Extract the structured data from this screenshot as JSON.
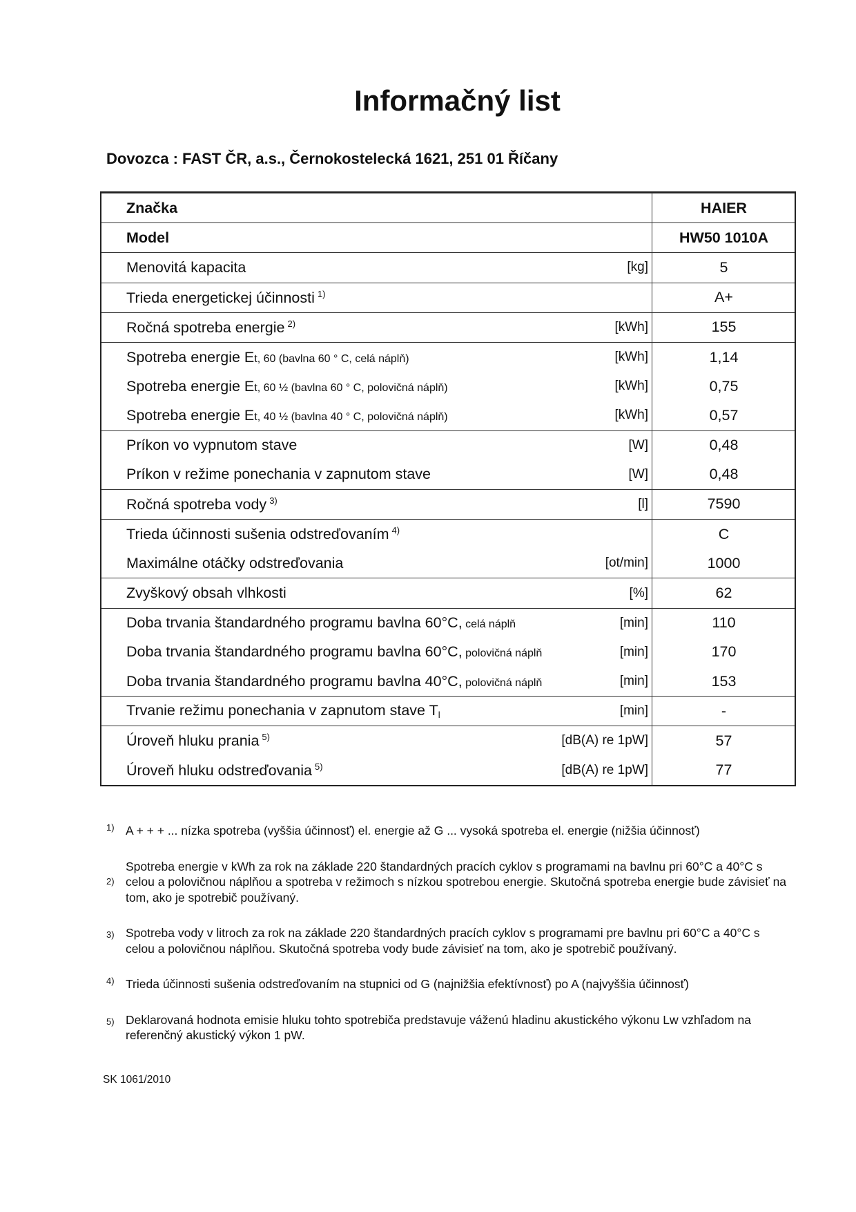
{
  "title": "Informačný list",
  "importer": "Dovozca : FAST ČR, a.s., Černokostelecká 1621, 251 01 Říčany",
  "rows": [
    {
      "label": "Značka",
      "sub": "",
      "sup": "",
      "unit": "",
      "value": "HAIER",
      "bold": true,
      "group_start": true
    },
    {
      "label": "Model",
      "sub": "",
      "sup": "",
      "unit": "",
      "value": "HW50 1010A",
      "bold": true,
      "group_start": true
    },
    {
      "label": "Menovitá kapacita",
      "sub": "",
      "sup": "",
      "unit": "[kg]",
      "value": "5",
      "group_start": true
    },
    {
      "label": "Trieda energetickej účinnosti",
      "sub": "",
      "sup": "1)",
      "unit": "",
      "value": "A+",
      "group_start": true
    },
    {
      "label": "Ročná spotreba energie",
      "sub": "",
      "sup": "2)",
      "unit": "[kWh]",
      "value": "155",
      "group_start": true
    },
    {
      "label": "Spotreba energie E",
      "sub": "t, 60 (bavlna 60 ° C, celá náplň)",
      "sup": "",
      "unit": "[kWh]",
      "value": "1,14",
      "group_start": true
    },
    {
      "label": "Spotreba energie E",
      "sub": "t, 60 ½ (bavlna 60 ° C, polovičná náplň)",
      "sup": "",
      "unit": "[kWh]",
      "value": "0,75",
      "group_start": false
    },
    {
      "label": "Spotreba energie E",
      "sub": "t, 40 ½ (bavlna 40 ° C, polovičná náplň)",
      "sup": "",
      "unit": "[kWh]",
      "value": "0,57",
      "group_start": false
    },
    {
      "label": "Príkon vo vypnutom stave",
      "sub": "",
      "sup": "",
      "unit": "[W]",
      "value": "0,48",
      "group_start": true
    },
    {
      "label": "Príkon v režime ponechania v zapnutom stave",
      "sub": "",
      "sup": "",
      "unit": "[W]",
      "value": "0,48",
      "group_start": false
    },
    {
      "label": "Ročná spotreba vody",
      "sub": "",
      "sup": "3)",
      "unit": "[l]",
      "value": "7590",
      "group_start": true
    },
    {
      "label": "Trieda účinnosti sušenia odstreďovaním",
      "sub": "",
      "sup": "4)",
      "unit": "",
      "value": "C",
      "group_start": true
    },
    {
      "label": "Maximálne otáčky odstreďovania",
      "sub": "",
      "sup": "",
      "unit": "[ot/min]",
      "value": "1000",
      "group_start": false
    },
    {
      "label": "Zvyškový obsah vlhkosti",
      "sub": "",
      "sup": "",
      "unit": "[%]",
      "value": "62",
      "group_start": true
    },
    {
      "label": "Doba trvania štandardného programu bavlna 60°C,",
      "sub": " celá náplň",
      "sup": "",
      "unit": "[min]",
      "value": "110",
      "group_start": true
    },
    {
      "label": "Doba trvania štandardného programu bavlna 60°C,",
      "sub": " polovičná náplň",
      "sup": "",
      "unit": "[min]",
      "value": "170",
      "group_start": false
    },
    {
      "label": "Doba trvania štandardného programu bavlna 40°C,",
      "sub": " polovičná náplň",
      "sup": "",
      "unit": "[min]",
      "value": "153",
      "group_start": false
    },
    {
      "label": "Trvanie režimu ponechania v zapnutom stave T",
      "subscript": "l",
      "sub": "",
      "sup": "",
      "unit": "[min]",
      "value": "-",
      "group_start": true
    },
    {
      "label": "Úroveň hluku prania",
      "sub": "",
      "sup": "5)",
      "unit": "[dB(A) re 1pW]",
      "value": "57",
      "group_start": true
    },
    {
      "label": "Úroveň hluku odstreďovania",
      "sub": "",
      "sup": "5)",
      "unit": "[dB(A) re 1pW]",
      "value": "77",
      "group_start": false
    }
  ],
  "footnotes": [
    {
      "num": "1)",
      "text": "A + + + ... nízka spotreba (vyššia účinnosť) el. energie až G ... vysoká spotreba el. energie (nižšia účinnosť)"
    },
    {
      "num": "2)",
      "text": "Spotreba energie v kWh za rok na základe 220 štandardných pracích cyklov s programami na bavlnu pri 60°C a 40°C s celou a polovičnou náplňou a spotreba v režimoch s nízkou spotrebou energie. Skutočná spotreba energie bude závisieť na tom, ako je spotrebič používaný."
    },
    {
      "num": "3)",
      "text": "Spotreba vody v litroch za rok na základe 220 štandardných pracích cyklov s programami pre bavlnu pri 60°C a 40°C s celou a polovičnou náplňou. Skutočná spotreba vody bude závisieť na tom, ako je spotrebič používaný."
    },
    {
      "num": "4)",
      "text": "Trieda účinnosti sušenia odstreďovaním na stupnici od G (najnižšia efektívnosť) po A (najvyššia účinnosť)"
    },
    {
      "num": "5)",
      "text": "Deklarovaná hodnota emisie hluku tohto spotrebiča predstavuje váženú hladinu akustického výkonu Lw vzhľadom na referenčný akustický výkon 1 pW."
    }
  ],
  "footer_code": "SK 1061/2010"
}
